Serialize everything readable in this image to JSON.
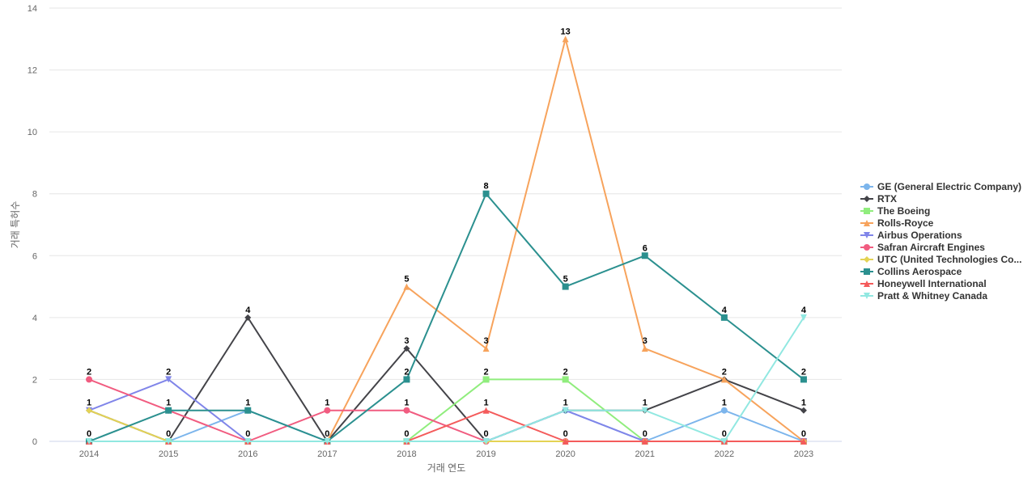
{
  "chart_data": {
    "type": "line",
    "xlabel": "거래 연도",
    "ylabel": "거래 특허수",
    "ylim": [
      0,
      14
    ],
    "yticks": [
      0,
      2,
      4,
      6,
      8,
      10,
      12,
      14
    ],
    "x": [
      "2014",
      "2015",
      "2016",
      "2017",
      "2018",
      "2019",
      "2020",
      "2021",
      "2022",
      "2023"
    ],
    "legend_position": "right",
    "series": [
      {
        "name": "GE (General Electric Company)",
        "display_name": "GE (General Electric Company)",
        "color": "#7cb5ec",
        "marker": "circle",
        "values": [
          0,
          0,
          1,
          0,
          0,
          0,
          1,
          0,
          1,
          0
        ],
        "labels": [
          null,
          null,
          null,
          null,
          null,
          null,
          null,
          null,
          "1",
          null
        ]
      },
      {
        "name": "RTX",
        "display_name": "RTX",
        "color": "#434348",
        "marker": "diamond",
        "values": [
          1,
          0,
          4,
          0,
          3,
          0,
          1,
          1,
          2,
          1
        ],
        "labels": [
          null,
          null,
          "4",
          null,
          "3",
          null,
          null,
          null,
          null,
          "1"
        ]
      },
      {
        "name": "The Boeing",
        "display_name": "The Boeing",
        "color": "#90ed7d",
        "marker": "square",
        "values": [
          0,
          0,
          0,
          0,
          0,
          2,
          2,
          0,
          0,
          0
        ],
        "labels": [
          null,
          null,
          null,
          null,
          null,
          "2",
          "2",
          null,
          null,
          null
        ]
      },
      {
        "name": "Rolls-Royce",
        "display_name": "Rolls-Royce",
        "color": "#f7a35c",
        "marker": "triangle",
        "values": [
          0,
          0,
          0,
          0,
          5,
          3,
          13,
          3,
          2,
          0
        ],
        "labels": [
          null,
          null,
          null,
          null,
          "5",
          "3",
          "13",
          "3",
          "2",
          null
        ]
      },
      {
        "name": "Airbus Operations",
        "display_name": "Airbus Operations",
        "color": "#8085e9",
        "marker": "triangle-down",
        "values": [
          1,
          2,
          0,
          0,
          0,
          0,
          1,
          0,
          0,
          0
        ],
        "labels": [
          null,
          "2",
          null,
          null,
          null,
          null,
          null,
          null,
          null,
          null
        ]
      },
      {
        "name": "Safran Aircraft Engines",
        "display_name": "Safran Aircraft Engines",
        "color": "#f15c80",
        "marker": "circle",
        "values": [
          2,
          1,
          0,
          1,
          1,
          0,
          0,
          0,
          0,
          0
        ],
        "labels": [
          "2",
          null,
          null,
          "1",
          "1",
          null,
          null,
          null,
          null,
          null
        ]
      },
      {
        "name": "UTC (United Technologies Corporation)",
        "display_name": "UTC (United Technologies Co...",
        "color": "#e4d354",
        "marker": "diamond",
        "values": [
          1,
          0,
          0,
          0,
          0,
          0,
          0,
          0,
          0,
          0
        ],
        "labels": [
          "1",
          null,
          null,
          null,
          null,
          null,
          null,
          null,
          null,
          null
        ]
      },
      {
        "name": "Collins Aerospace",
        "display_name": "Collins Aerospace",
        "color": "#2b908f",
        "marker": "square",
        "values": [
          0,
          1,
          1,
          0,
          2,
          8,
          5,
          6,
          4,
          2
        ],
        "labels": [
          null,
          "1",
          "1",
          null,
          "2",
          "8",
          "5",
          "6",
          "4",
          "2"
        ]
      },
      {
        "name": "Honeywell International",
        "display_name": "Honeywell International",
        "color": "#f45b5b",
        "marker": "triangle",
        "values": [
          0,
          0,
          0,
          0,
          0,
          1,
          0,
          0,
          0,
          0
        ],
        "labels": [
          null,
          null,
          null,
          null,
          null,
          "1",
          null,
          null,
          null,
          null
        ]
      },
      {
        "name": "Pratt & Whitney Canada",
        "display_name": "Pratt & Whitney Canada",
        "color": "#91e8e1",
        "marker": "triangle-down",
        "values": [
          0,
          0,
          0,
          0,
          0,
          0,
          1,
          1,
          0,
          4
        ],
        "labels": [
          null,
          null,
          null,
          null,
          null,
          null,
          "1",
          "1",
          null,
          "4"
        ]
      }
    ],
    "zero_labels": [
      "0",
      "0",
      "0",
      "0",
      "0",
      "0",
      "0",
      "0",
      "0",
      "0"
    ],
    "extra_labels": [
      null,
      null,
      null,
      null,
      null,
      null,
      null,
      null,
      null,
      null
    ]
  }
}
